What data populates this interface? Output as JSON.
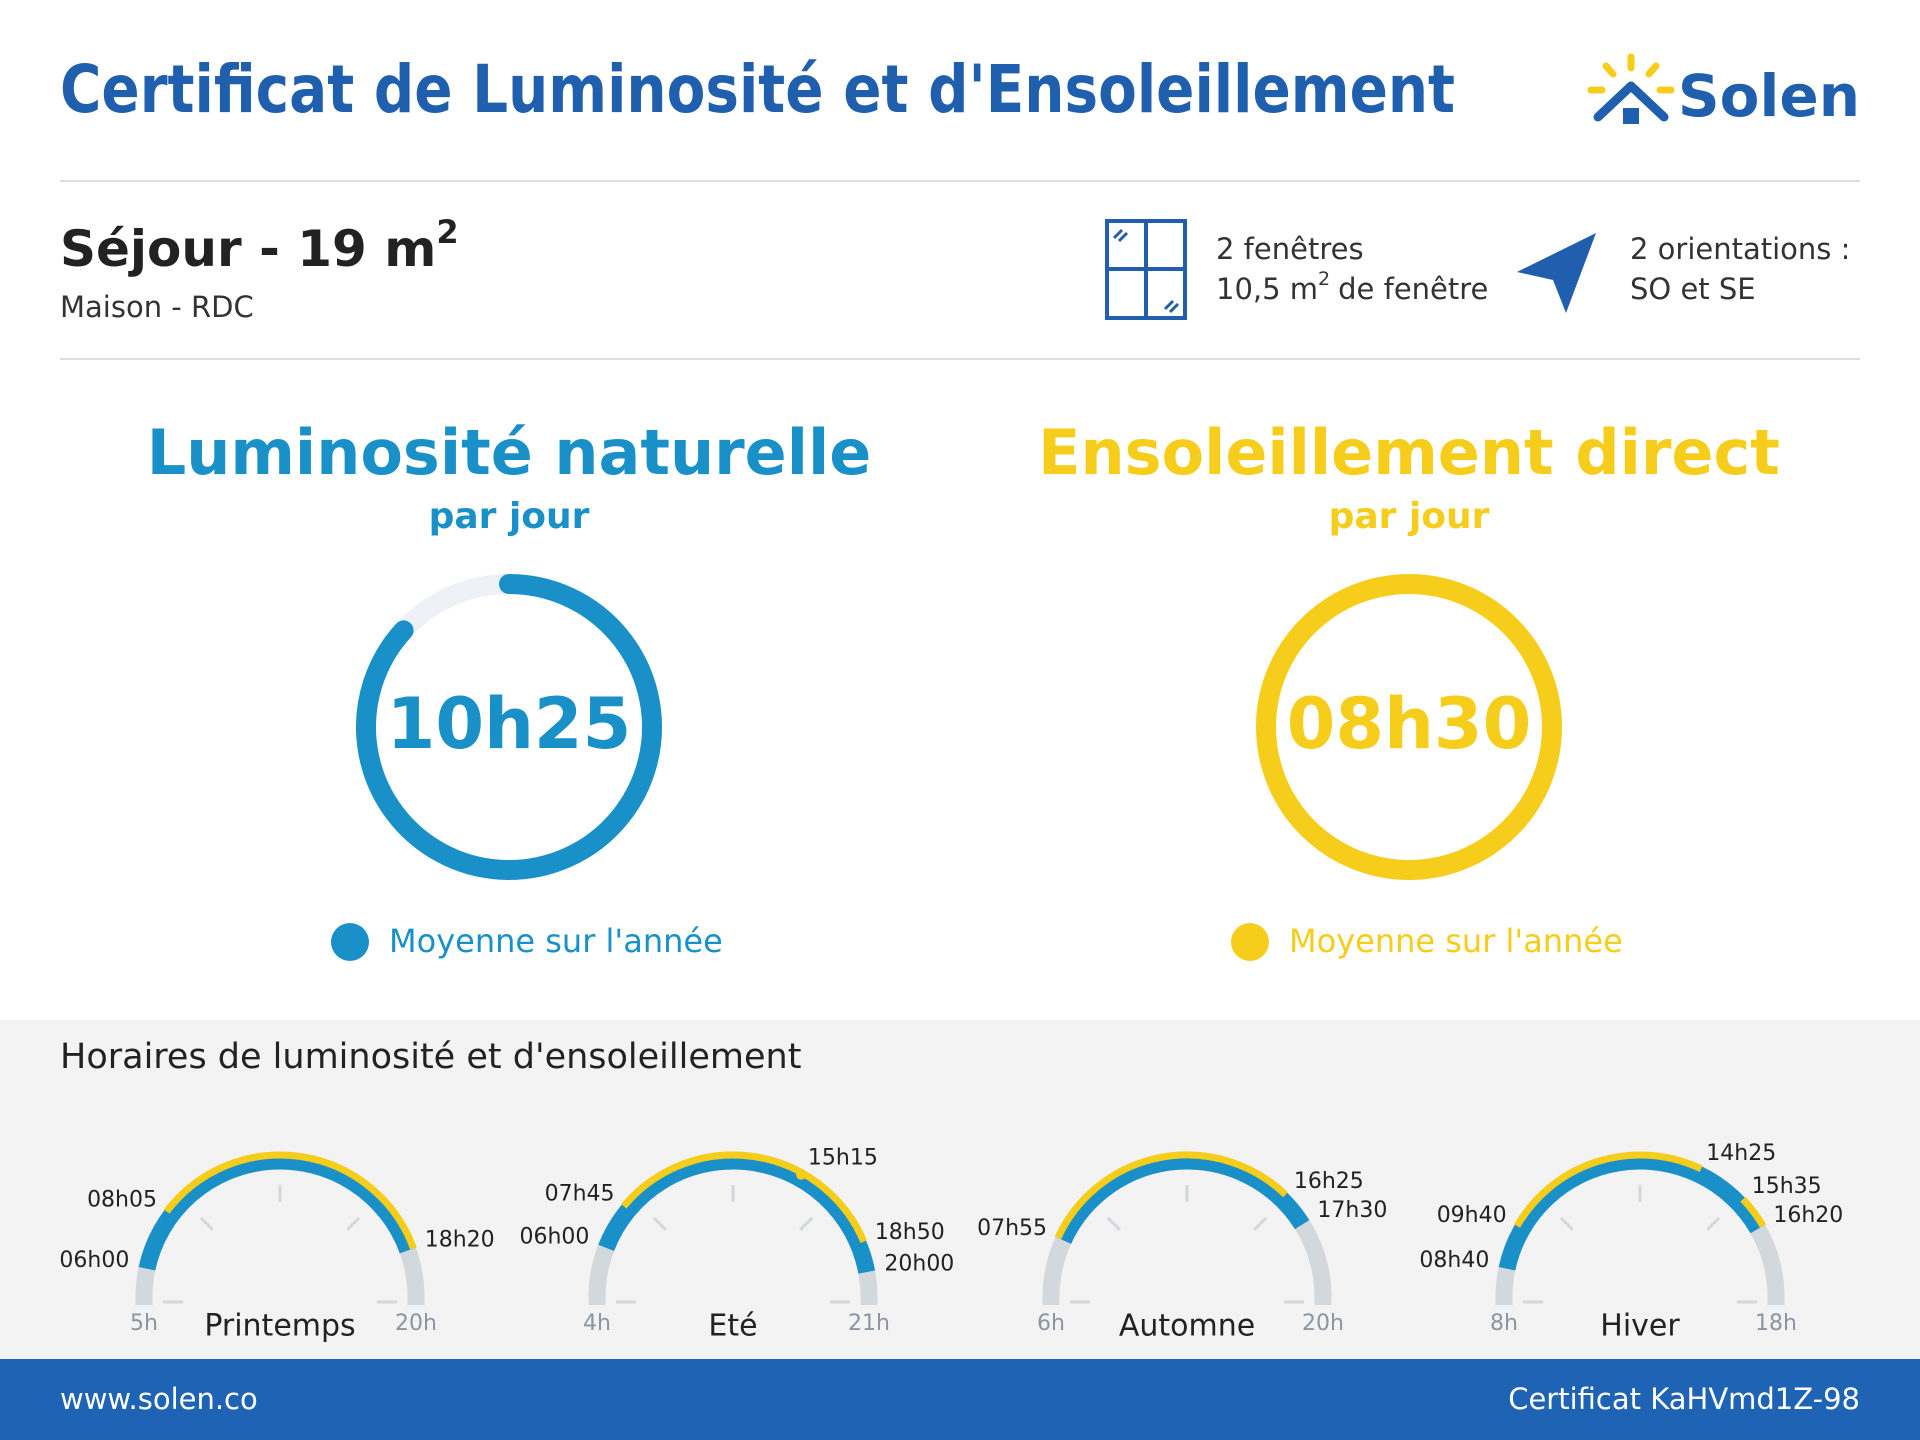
{
  "header": {
    "title": "Certificat de Luminosité et d'Ensoleillement",
    "logo": "Solen"
  },
  "room": {
    "name": "Séjour - 19 m",
    "name_sup": "2",
    "location": "Maison - RDC"
  },
  "windows": {
    "count": "2 fenêtres",
    "area": "10,5 m",
    "area_sup": "2",
    "area_suffix": "de fenêtre"
  },
  "orientation": {
    "line1": "2 orientations :",
    "line2": "SO et SE"
  },
  "luminosity": {
    "title": "Luminosité naturelle",
    "subtitle": "par jour",
    "value": "10h25",
    "legend": "Moyenne sur l'année"
  },
  "sunshine": {
    "title": "Ensoleillement direct",
    "subtitle": "par jour",
    "value": "08h30",
    "legend": "Moyenne sur l'année"
  },
  "schedule": {
    "title": "Horaires de luminosité et d'ensoleillement",
    "seasons": [
      {
        "name": "Printemps",
        "range": [
          "5h",
          "20h"
        ],
        "light": [
          "06h00",
          "18h20"
        ],
        "sun": [
          [
            "08h05",
            "18h20"
          ]
        ]
      },
      {
        "name": "Eté",
        "range": [
          "4h",
          "21h"
        ],
        "light": [
          "06h00",
          "20h00"
        ],
        "sun": [
          [
            "07h45",
            "18h50"
          ]
        ],
        "marker": "15h15"
      },
      {
        "name": "Automne",
        "range": [
          "6h",
          "20h"
        ],
        "light": [
          "07h55",
          "17h30"
        ],
        "sun": [
          [
            "07h55",
            "16h25"
          ]
        ]
      },
      {
        "name": "Hiver",
        "range": [
          "8h",
          "18h"
        ],
        "light": [
          "08h40",
          "16h20"
        ],
        "sun": [
          [
            "09h40",
            "14h25"
          ],
          [
            "15h35",
            "16h20"
          ]
        ]
      }
    ]
  },
  "footer": {
    "website": "www.solen.co",
    "certificate": "Certificat KaHVmd1Z-98"
  }
}
